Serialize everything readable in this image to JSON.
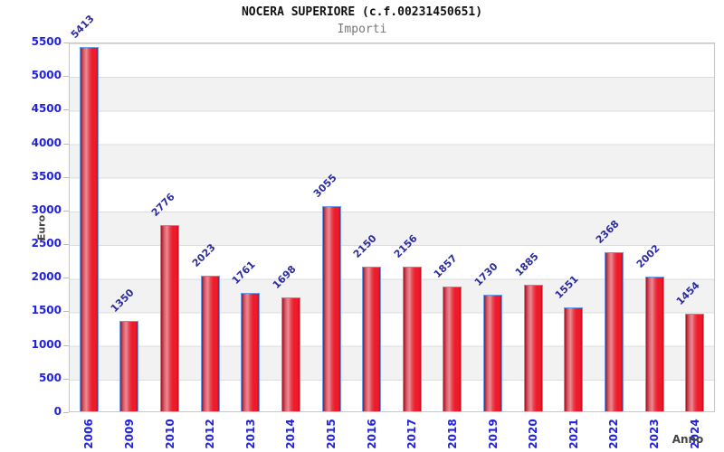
{
  "header": {
    "title": "NOCERA SUPERIORE (c.f.00231450651)",
    "subtitle": "Importi"
  },
  "chart_data": {
    "type": "bar",
    "title": "NOCERA SUPERIORE (c.f.00231450651)",
    "subtitle": "Importi",
    "categories": [
      "2006",
      "2009",
      "2010",
      "2012",
      "2013",
      "2014",
      "2015",
      "2016",
      "2017",
      "2018",
      "2019",
      "2020",
      "2021",
      "2022",
      "2023",
      "2024"
    ],
    "values": [
      5413,
      1350,
      2776,
      2023,
      1761,
      1698,
      3055,
      2150,
      2156,
      1857,
      1730,
      1885,
      1551,
      2368,
      2002,
      1454
    ],
    "xlabel": "Anno",
    "ylabel": "Euro",
    "ylim": [
      0,
      5500
    ],
    "ytick_step": 500,
    "ytick_labels": [
      "0",
      "500",
      "1000",
      "1500",
      "2000",
      "2500",
      "3000",
      "3500",
      "4000",
      "4500",
      "5000",
      "5500"
    ],
    "grid": "horizontal-bands",
    "legend": "none",
    "colors": {
      "bar_gradient_dark": "#a80f1e",
      "bar_gradient_highlight": "#ec8a93",
      "bar_gradient_bright": "#ee1b2b",
      "bar_border": "#6a9de8",
      "axis_tick_text": "#2222dd",
      "value_label_text": "#2c2c9e",
      "axis_title_text": "#444444",
      "title_text": "#111111",
      "subtitle_text": "#777777",
      "band_fill": "#f2f2f2",
      "gridline": "#dcdcdc",
      "plot_border": "#c8c8c8"
    }
  }
}
